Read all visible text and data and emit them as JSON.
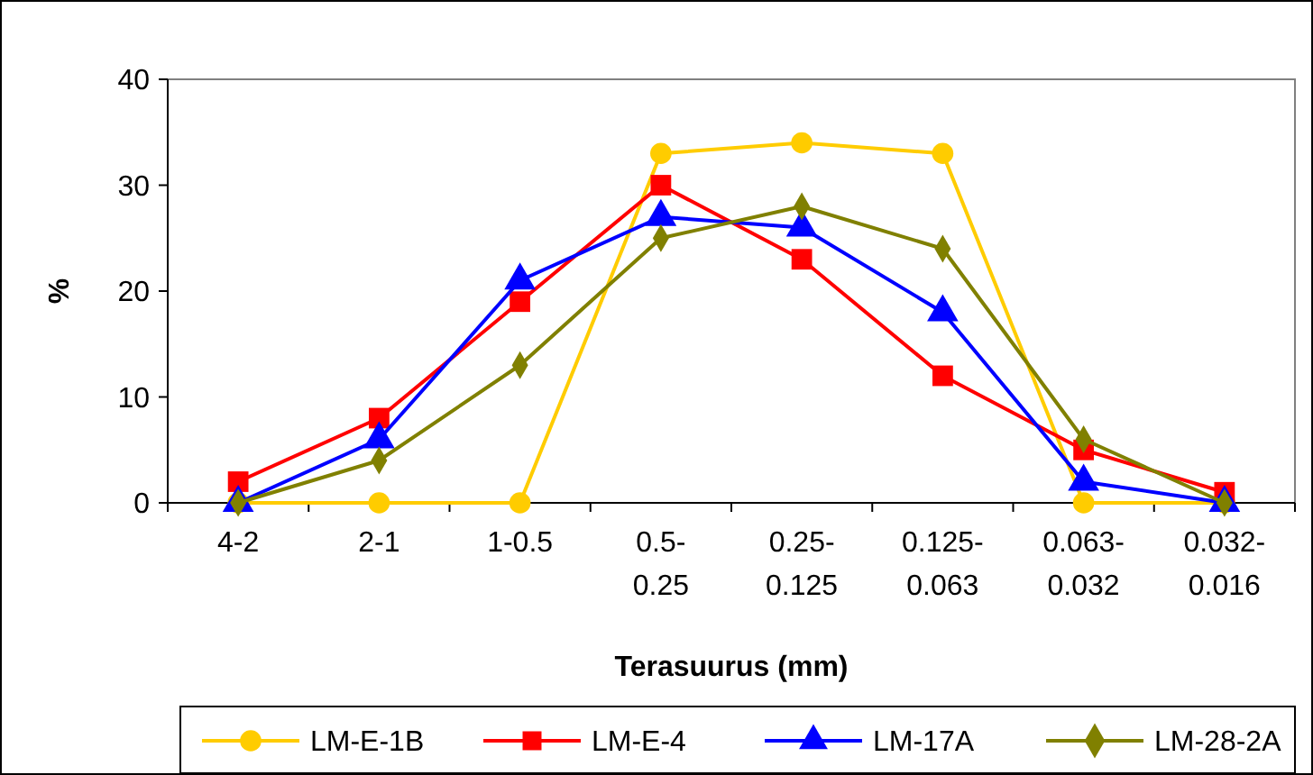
{
  "chart_data": {
    "type": "line",
    "xlabel": "Terasuurus (mm)",
    "ylabel": "%",
    "categories": [
      "4-2",
      "2-1",
      "1-0.5",
      "0.5-0.25",
      "0.25-0.125",
      "0.125-0.063",
      "0.063-0.032",
      "0.032-0.016"
    ],
    "series": [
      {
        "name": "LM-E-1B",
        "color": "#ffcc00",
        "marker": "circle",
        "values": [
          0,
          0,
          0,
          33,
          34,
          33,
          0,
          0
        ]
      },
      {
        "name": "LM-E-4",
        "color": "#ff0000",
        "marker": "square",
        "values": [
          2,
          8,
          19,
          30,
          23,
          12,
          5,
          1
        ]
      },
      {
        "name": "LM-17A",
        "color": "#0000ff",
        "marker": "triangle",
        "values": [
          0,
          6,
          21,
          27,
          26,
          18,
          2,
          0
        ]
      },
      {
        "name": "LM-28-2A",
        "color": "#808000",
        "marker": "diamond",
        "values": [
          0,
          4,
          13,
          25,
          28,
          24,
          6,
          0
        ]
      }
    ],
    "ylim": [
      0,
      40
    ],
    "yticks": [
      0,
      10,
      20,
      30,
      40
    ],
    "grid": false,
    "legend": "bottom",
    "line_style": "solid"
  }
}
